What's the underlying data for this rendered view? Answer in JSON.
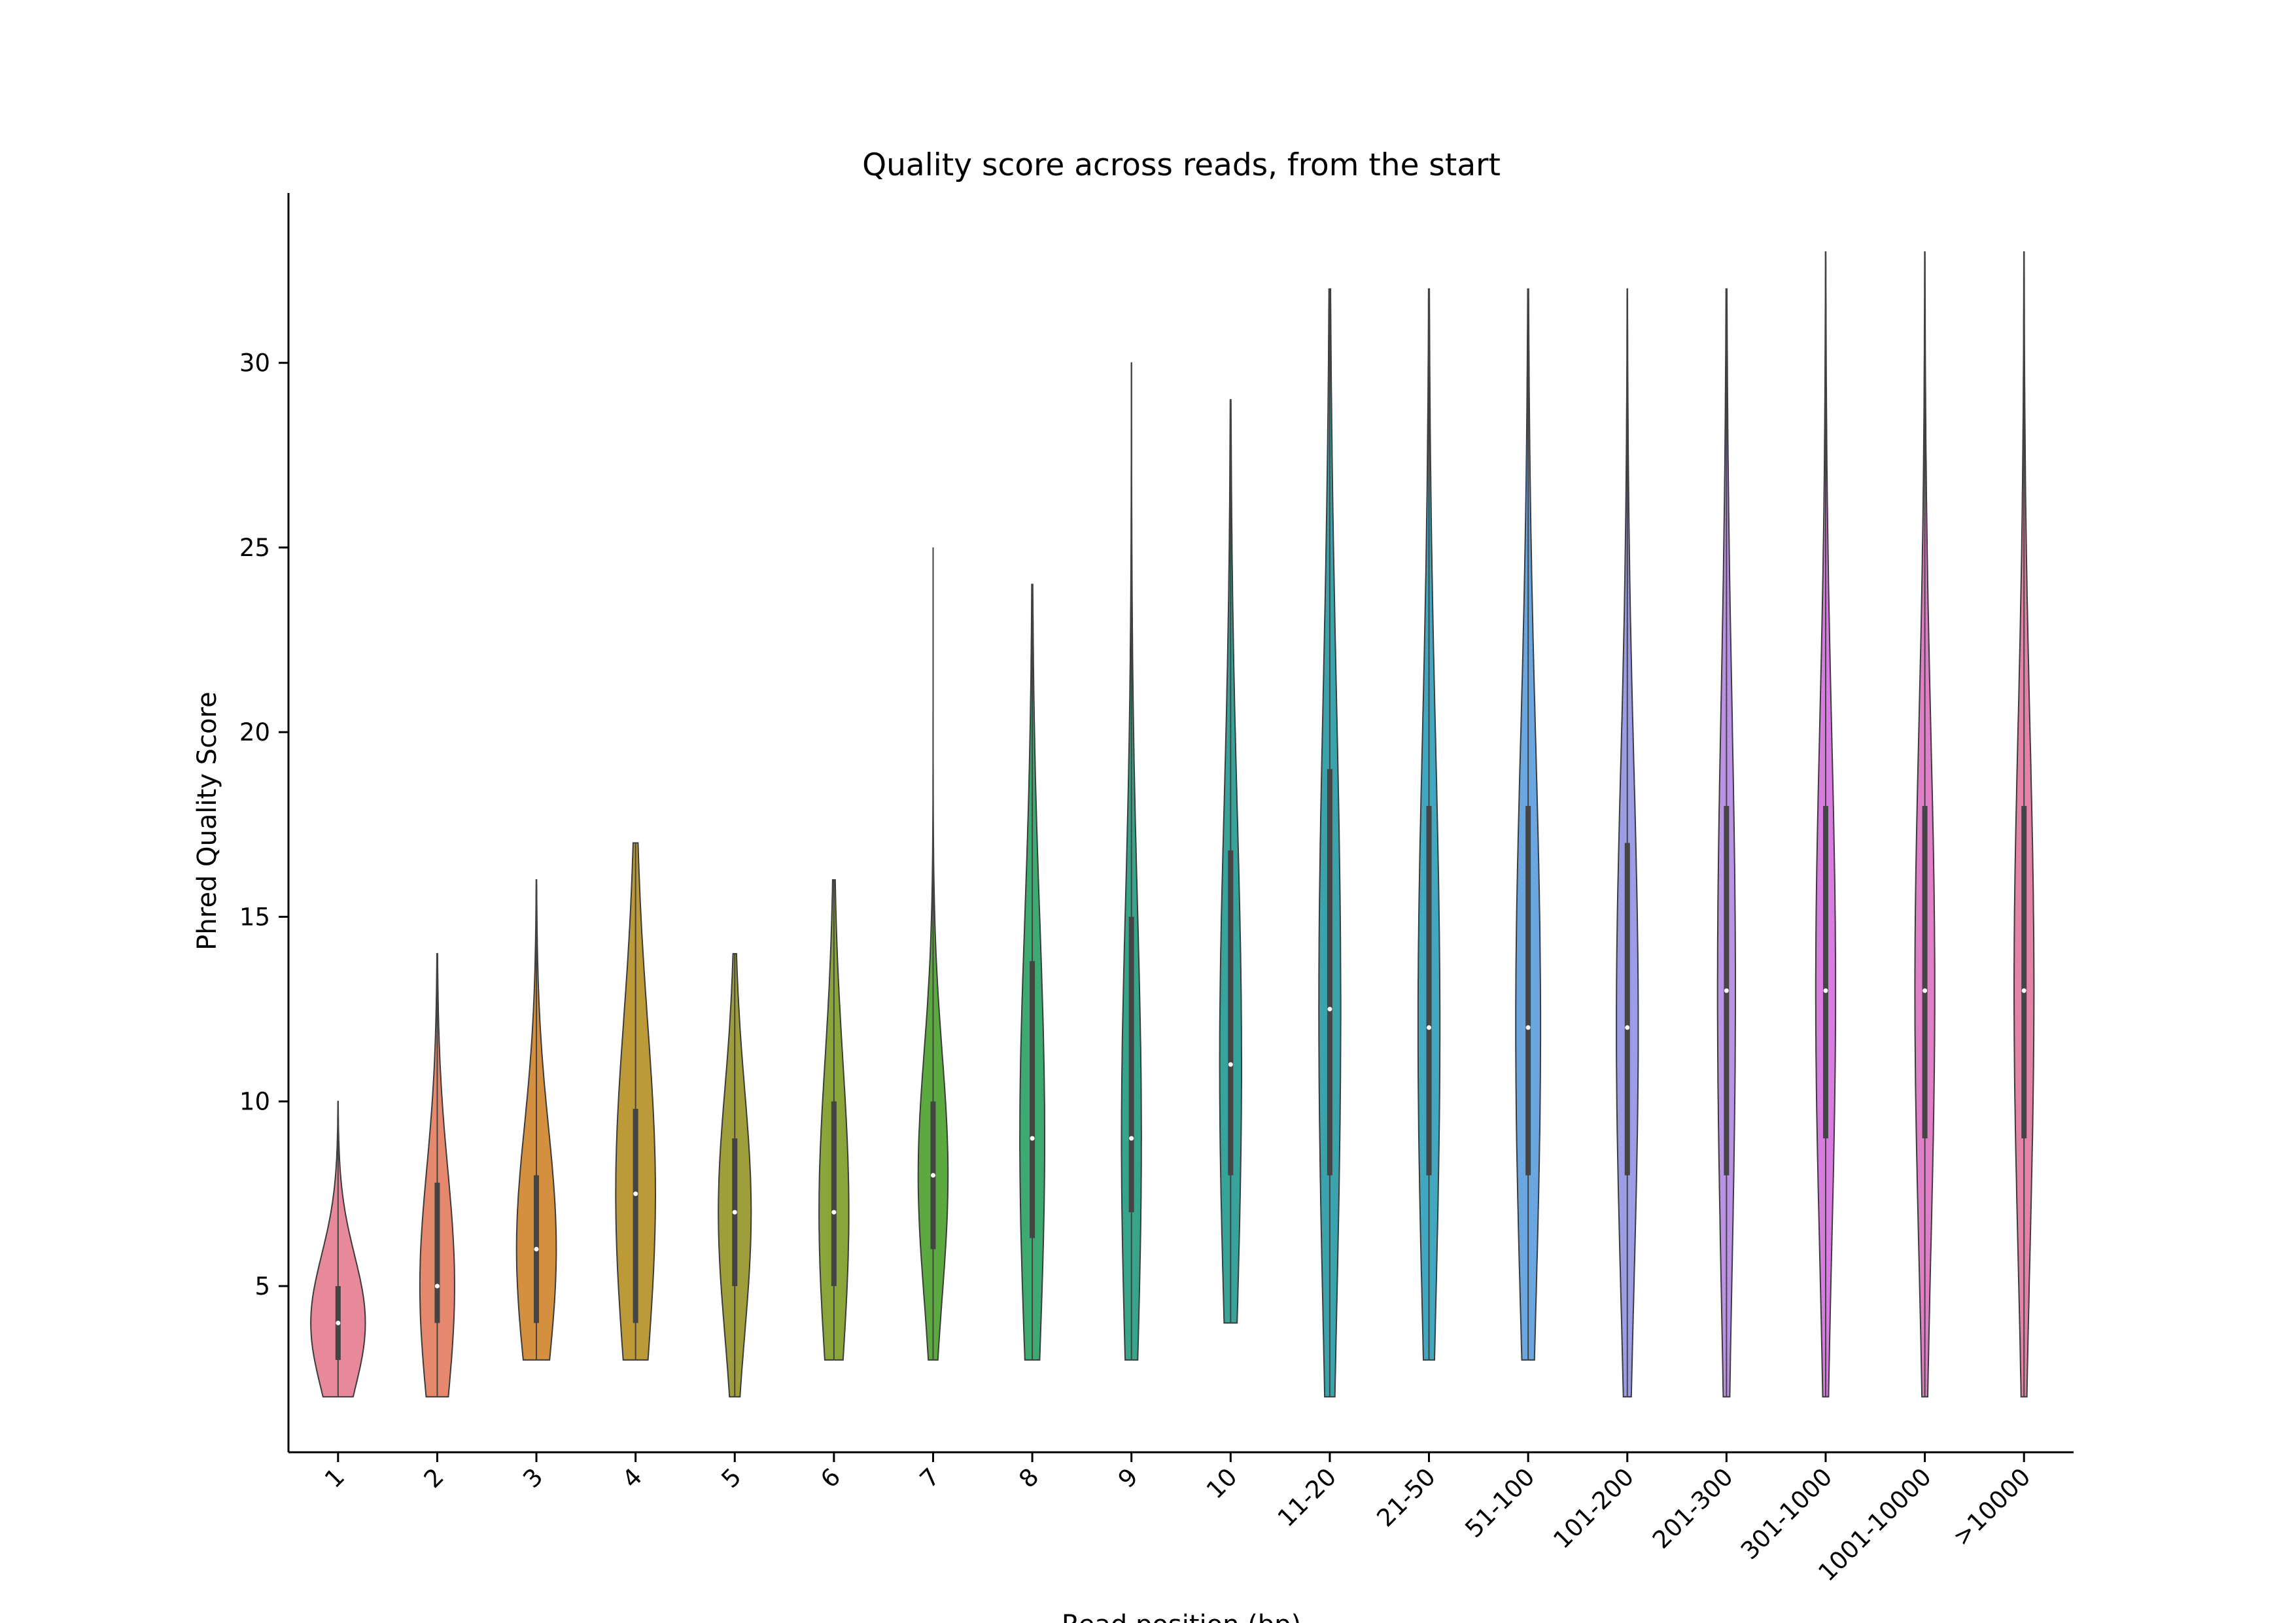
{
  "chart_data": {
    "type": "violin",
    "title": "Quality score across reads, from the start",
    "xlabel": "Read position (bp)",
    "ylabel": "Phred Quality Score",
    "ylim": [
      0.5,
      34.6
    ],
    "yticks": [
      5,
      10,
      15,
      20,
      25,
      30
    ],
    "grid": false,
    "categories": [
      "1",
      "2",
      "3",
      "4",
      "5",
      "6",
      "7",
      "8",
      "9",
      "10",
      "11-20",
      "21-50",
      "51-100",
      "101-200",
      "201-300",
      "301-1000",
      "1001-10000",
      ">10000"
    ],
    "colors": [
      "#e8889b",
      "#e6886e",
      "#d4903f",
      "#bc9a37",
      "#9e9e3a",
      "#8aa63b",
      "#5aaa40",
      "#3daa72",
      "#36a58a",
      "#38a39a",
      "#3aa3ab",
      "#42a8c0",
      "#6aa6e0",
      "#9d9ce6",
      "#bc92e6",
      "#d97ce2",
      "#e07ec8",
      "#e582a8"
    ],
    "stats": [
      {
        "min": 2,
        "q1": 3,
        "median": 4,
        "q3": 5,
        "max": 10
      },
      {
        "min": 2,
        "q1": 4,
        "median": 5,
        "q3": 7.8,
        "max": 14
      },
      {
        "min": 3,
        "q1": 4,
        "median": 6,
        "q3": 8,
        "max": 16
      },
      {
        "min": 3,
        "q1": 4,
        "median": 7.5,
        "q3": 9.8,
        "max": 17
      },
      {
        "min": 2,
        "q1": 5,
        "median": 7,
        "q3": 9,
        "max": 14
      },
      {
        "min": 3,
        "q1": 5,
        "median": 7,
        "q3": 10,
        "max": 16
      },
      {
        "min": 3,
        "q1": 6,
        "median": 8,
        "q3": 10,
        "max": 25
      },
      {
        "min": 3,
        "q1": 6.3,
        "median": 9,
        "q3": 13.8,
        "max": 24
      },
      {
        "min": 3,
        "q1": 7,
        "median": 9,
        "q3": 15,
        "max": 30
      },
      {
        "min": 4,
        "q1": 8,
        "median": 11,
        "q3": 16.8,
        "max": 29
      },
      {
        "min": 2,
        "q1": 8,
        "median": 12.5,
        "q3": 19,
        "max": 32
      },
      {
        "min": 3,
        "q1": 8,
        "median": 12,
        "q3": 18,
        "max": 32
      },
      {
        "min": 3,
        "q1": 8,
        "median": 12,
        "q3": 18,
        "max": 32
      },
      {
        "min": 2,
        "q1": 8,
        "median": 12,
        "q3": 17,
        "max": 32
      },
      {
        "min": 2,
        "q1": 8,
        "median": 13,
        "q3": 18,
        "max": 32
      },
      {
        "min": 2,
        "q1": 9,
        "median": 13,
        "q3": 18,
        "max": 33
      },
      {
        "min": 2,
        "q1": 9,
        "median": 13,
        "q3": 18,
        "max": 33
      },
      {
        "min": 2,
        "q1": 9,
        "median": 13,
        "q3": 18,
        "max": 33
      }
    ],
    "widths": [
      0.55,
      0.35,
      0.4,
      0.4,
      0.33,
      0.3,
      0.3,
      0.25,
      0.2,
      0.22,
      0.22,
      0.22,
      0.25,
      0.22,
      0.18,
      0.2,
      0.2,
      0.2
    ]
  }
}
